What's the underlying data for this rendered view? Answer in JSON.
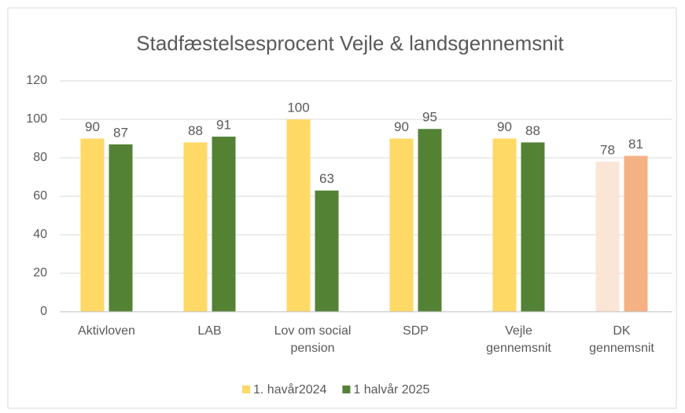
{
  "chart_data": {
    "type": "bar",
    "title": "Stadfæstelsesprocent  Vejle & landsgennemsnit",
    "categories": [
      "Aktivloven",
      "LAB",
      "Lov om social pension",
      "SDP",
      "Vejle gennemsnit",
      "DK gennemsnit"
    ],
    "series": [
      {
        "name": "1. havår2024",
        "color": "#ffd966",
        "colors": [
          "#ffd966",
          "#ffd966",
          "#ffd966",
          "#ffd966",
          "#ffd966",
          "#fbe5d6"
        ],
        "values": [
          90,
          88,
          100,
          90,
          90,
          78
        ]
      },
      {
        "name": "1 halvår 2025",
        "color": "#548235",
        "colors": [
          "#548235",
          "#548235",
          "#548235",
          "#548235",
          "#548235",
          "#f4b183"
        ],
        "values": [
          87,
          91,
          63,
          95,
          88,
          81
        ]
      }
    ],
    "ylim": [
      0,
      120
    ],
    "yticks": [
      0,
      20,
      40,
      60,
      80,
      100,
      120
    ],
    "grid": true,
    "legend": "bottom"
  }
}
